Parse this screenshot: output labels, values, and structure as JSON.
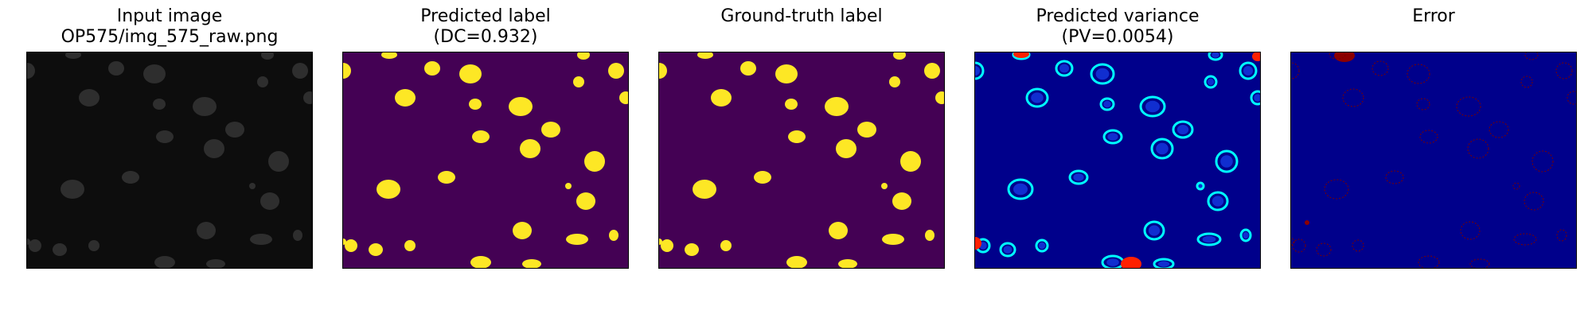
{
  "panels": [
    {
      "id": "input",
      "title_line1": "Input image",
      "title_line2": "OP575/img_575_raw.png"
    },
    {
      "id": "pred-label",
      "title_line1": "Predicted label",
      "title_line2": "(DC=0.932)"
    },
    {
      "id": "gt-label",
      "title_line1": "Ground-truth label",
      "title_line2": ""
    },
    {
      "id": "pred-var",
      "title_line1": "Predicted variance",
      "title_line2": "(PV=0.0054)"
    },
    {
      "id": "error",
      "title_line1": "Error",
      "title_line2": ""
    }
  ],
  "colors": {
    "input_background": "#0d0d0d",
    "input_nucleus": "#3a3a3a",
    "label_background": "#440154",
    "label_foreground": "#fde725",
    "variance_background": "#00008b",
    "variance_ring": "#00ffff",
    "variance_hot": "#ff2000",
    "error_background": "#00008b",
    "error_foreground": "#7a0000"
  }
}
